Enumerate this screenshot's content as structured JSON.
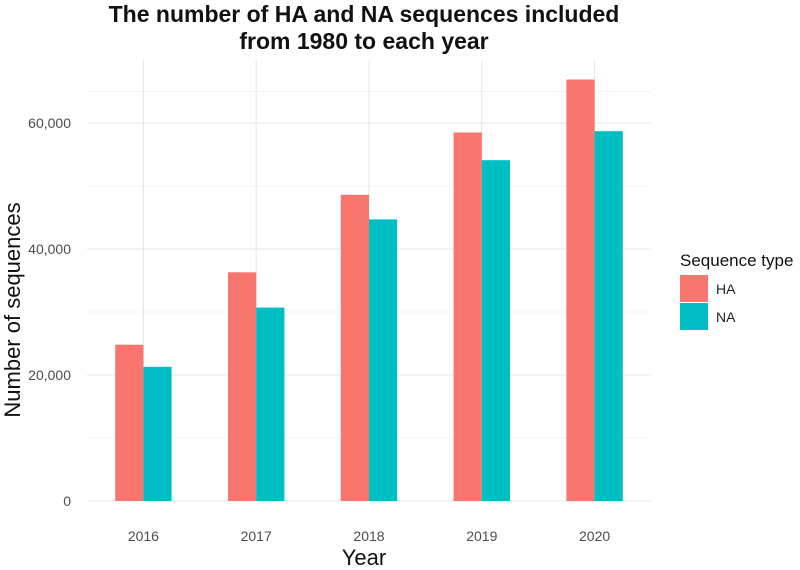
{
  "chart_data": {
    "type": "bar",
    "title": "The number of HA and NA sequences included from 1980 to each year",
    "title_lines": [
      "The number of HA and NA sequences included",
      "from 1980 to each year"
    ],
    "xlabel": "Year",
    "ylabel": "Number of sequences",
    "categories": [
      "2016",
      "2017",
      "2018",
      "2019",
      "2020"
    ],
    "series": [
      {
        "name": "HA",
        "color": "#F8766D",
        "values": [
          24800,
          36300,
          48600,
          58500,
          66900
        ]
      },
      {
        "name": "NA",
        "color": "#00BFC4",
        "values": [
          21300,
          30700,
          44700,
          54100,
          58700
        ]
      }
    ],
    "ylim": [
      0,
      70000
    ],
    "yticks": [
      0,
      20000,
      40000,
      60000
    ],
    "ytick_labels": [
      "0",
      "20,000",
      "40,000",
      "60,000"
    ],
    "grid": true,
    "legend": {
      "title": "Sequence type",
      "placement": "right"
    }
  }
}
